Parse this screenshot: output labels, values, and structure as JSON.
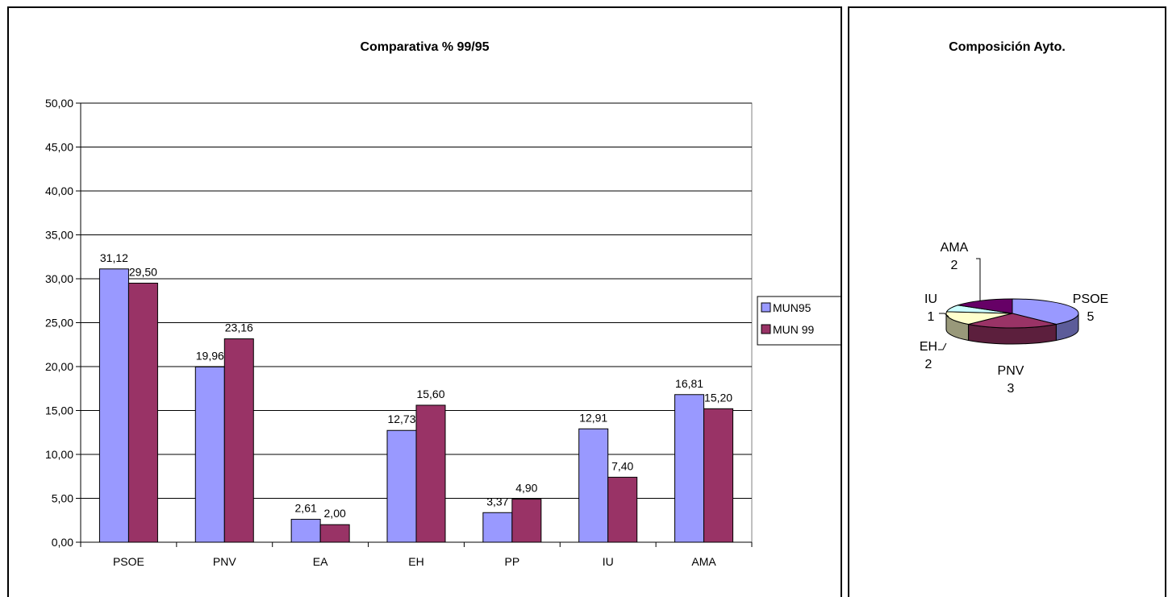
{
  "chart_data": [
    {
      "type": "bar",
      "title": "Comparativa % 99/95",
      "categories": [
        "PSOE",
        "PNV",
        "EA",
        "EH",
        "PP",
        "IU",
        "AMA"
      ],
      "series": [
        {
          "name": "MUN95",
          "color": "#9999ff",
          "values": [
            31.12,
            19.96,
            2.61,
            12.73,
            3.37,
            12.91,
            16.81
          ],
          "labels": [
            "31,12",
            "19,96",
            "2,61",
            "12,73",
            "3,37",
            "12,91",
            "16,81"
          ]
        },
        {
          "name": "MUN 99",
          "color": "#993366",
          "values": [
            29.5,
            23.16,
            2.0,
            15.6,
            4.9,
            7.4,
            15.2
          ],
          "labels": [
            "29,50",
            "23,16",
            "2,00",
            "15,60",
            "4,90",
            "7,40",
            "15,20"
          ]
        }
      ],
      "ylim": [
        0,
        50
      ],
      "yticks": [
        "0,00",
        "5,00",
        "10,00",
        "15,00",
        "20,00",
        "25,00",
        "30,00",
        "35,00",
        "40,00",
        "45,00",
        "50,00"
      ],
      "grid": true,
      "legend": "right"
    },
    {
      "type": "pie",
      "title": "Composición Ayto.",
      "slices": [
        {
          "label": "PSOE",
          "value": 5,
          "value_text": "5",
          "color": "#9999ff"
        },
        {
          "label": "PNV",
          "value": 3,
          "value_text": "3",
          "color": "#993366"
        },
        {
          "label": "EH",
          "value": 2,
          "value_text": "2",
          "color": "#ffffcc"
        },
        {
          "label": "IU",
          "value": 1,
          "value_text": "1",
          "color": "#ccffff"
        },
        {
          "label": "AMA",
          "value": 2,
          "value_text": "2",
          "color": "#660066"
        }
      ]
    }
  ]
}
